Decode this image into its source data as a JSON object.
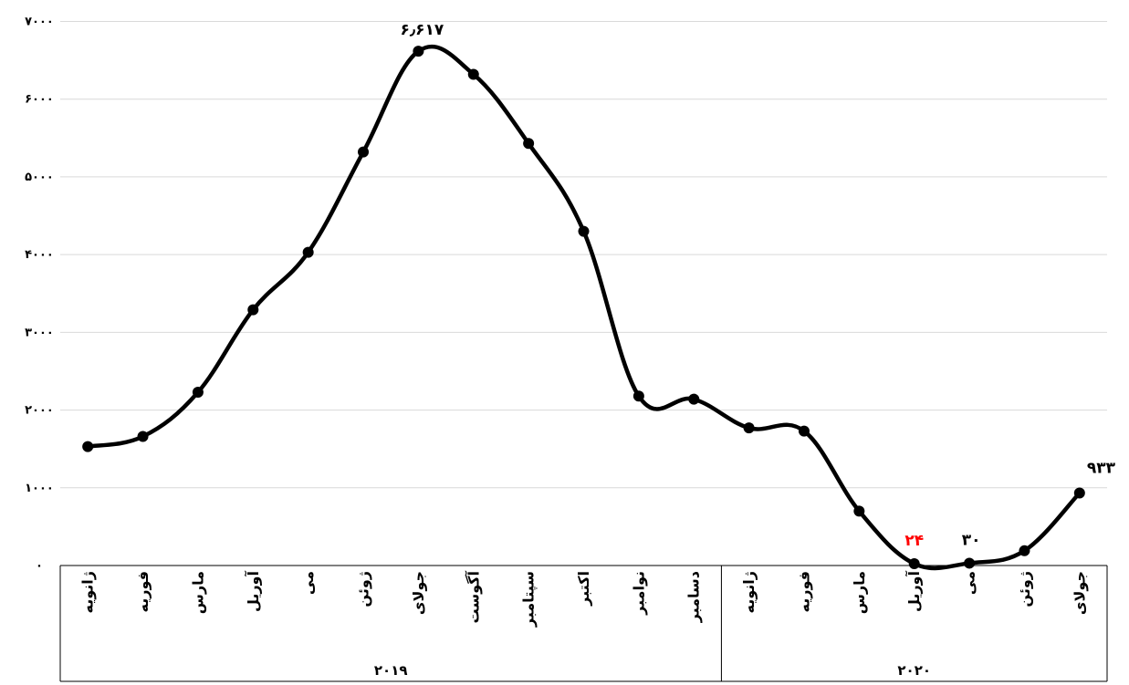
{
  "chart_data": {
    "type": "line",
    "ylim": [
      0,
      7000
    ],
    "y_ticks": [
      0,
      1000,
      2000,
      3000,
      4000,
      5000,
      6000,
      7000
    ],
    "y_tick_labels": [
      "۰",
      "۱۰۰۰",
      "۲۰۰۰",
      "۳۰۰۰",
      "۴۰۰۰",
      "۵۰۰۰",
      "۶۰۰۰",
      "۷۰۰۰"
    ],
    "grid": true,
    "smooth": true,
    "line_color": "#000000",
    "highlight_color": "#ff0000",
    "categories": [
      "ژانویه",
      "فوریه",
      "مارس",
      "آوریل",
      "می",
      "ژوئن",
      "جولای",
      "آگوست",
      "سپتامبر",
      "اکتبر",
      "نوامبر",
      "دسامبر",
      "ژانویه",
      "فوریه",
      "مارس",
      "آوریل",
      "می",
      "ژوئن",
      "جولای"
    ],
    "groups": [
      {
        "label": "۲۰۱۹",
        "count": 12
      },
      {
        "label": "۲۰۲۰",
        "count": 7
      }
    ],
    "series": [
      {
        "values": [
          1530,
          1660,
          2230,
          3290,
          4030,
          5320,
          6617,
          6320,
          5430,
          4300,
          2180,
          2140,
          1770,
          1730,
          700,
          24,
          30,
          190,
          933
        ]
      }
    ],
    "data_labels": [
      {
        "index": 6,
        "text": "۶٫۶۱۷",
        "color": "#000000"
      },
      {
        "index": 15,
        "text": "۲۴",
        "color": "#ff0000"
      },
      {
        "index": 16,
        "text": "۳۰",
        "color": "#000000"
      },
      {
        "index": 18,
        "text": "۹۳۳",
        "color": "#000000"
      }
    ]
  }
}
